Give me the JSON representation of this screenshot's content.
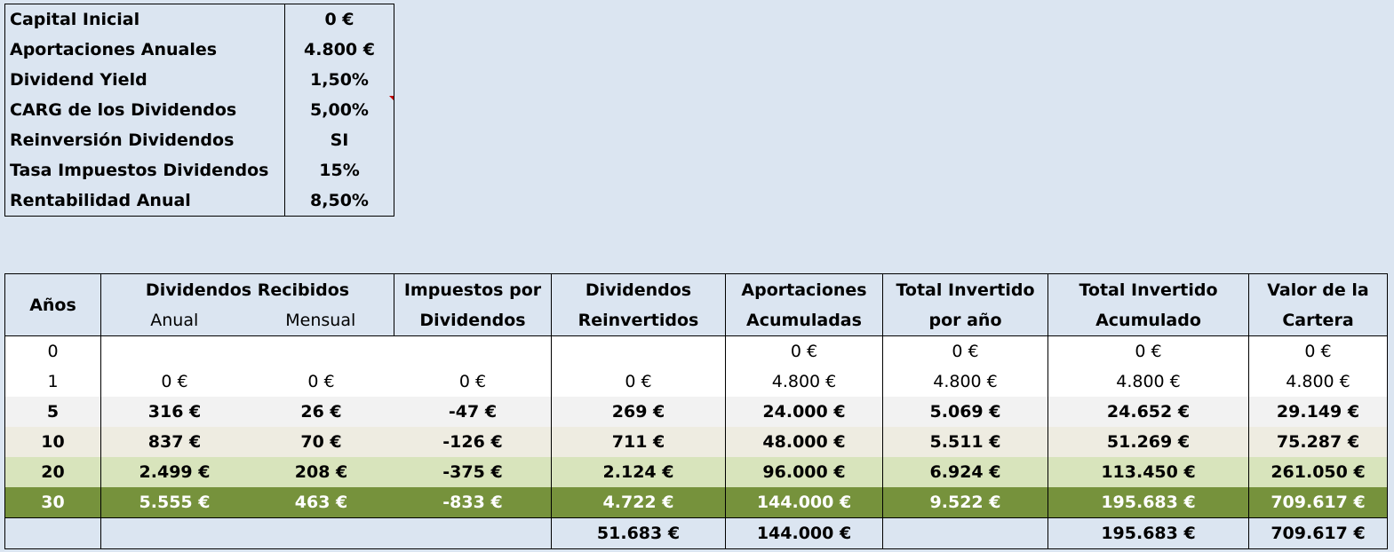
{
  "parameters": [
    {
      "label": "Capital Inicial",
      "value": "0 €"
    },
    {
      "label": "Aportaciones Anuales",
      "value": "4.800 €"
    },
    {
      "label": "Dividend Yield",
      "value": "1,50%"
    },
    {
      "label": "CARG de los Dividendos",
      "value": "5,00%"
    },
    {
      "label": "Reinversión Dividendos",
      "value": "SI"
    },
    {
      "label": "Tasa Impuestos Dividendos",
      "value": "15%"
    },
    {
      "label": "Rentabilidad Anual",
      "value": "8,50%"
    }
  ],
  "table": {
    "headers": {
      "years": "Años",
      "dividends": "Dividendos Recibidos",
      "annual": "Anual",
      "monthly": "Mensual",
      "taxes_1": "Impuestos por",
      "taxes_2": "Dividendos",
      "reinvested_1": "Dividendos",
      "reinvested_2": "Reinvertidos",
      "contrib_1": "Aportaciones",
      "contrib_2": "Acumuladas",
      "invested_year_1": "Total Invertido",
      "invested_year_2": "por año",
      "invested_acc_1": "Total Invertido",
      "invested_acc_2": "Acumulado",
      "portfolio_1": "Valor de la",
      "portfolio_2": "Cartera"
    },
    "rows": [
      {
        "year": "0",
        "annual": "",
        "monthly": "",
        "taxes": "",
        "reinvested": "",
        "contrib": "0 €",
        "invested_year": "0 €",
        "invested_acc": "0 €",
        "portfolio": "0 €"
      },
      {
        "year": "1",
        "annual": "0 €",
        "monthly": "0 €",
        "taxes": "0 €",
        "reinvested": "0 €",
        "contrib": "4.800 €",
        "invested_year": "4.800 €",
        "invested_acc": "4.800 €",
        "portfolio": "4.800 €"
      },
      {
        "year": "5",
        "annual": "316 €",
        "monthly": "26 €",
        "taxes": "-47 €",
        "reinvested": "269 €",
        "contrib": "24.000 €",
        "invested_year": "5.069 €",
        "invested_acc": "24.652 €",
        "portfolio": "29.149 €"
      },
      {
        "year": "10",
        "annual": "837 €",
        "monthly": "70 €",
        "taxes": "-126 €",
        "reinvested": "711 €",
        "contrib": "48.000 €",
        "invested_year": "5.511 €",
        "invested_acc": "51.269 €",
        "portfolio": "75.287 €"
      },
      {
        "year": "20",
        "annual": "2.499 €",
        "monthly": "208 €",
        "taxes": "-375 €",
        "reinvested": "2.124 €",
        "contrib": "96.000 €",
        "invested_year": "6.924 €",
        "invested_acc": "113.450 €",
        "portfolio": "261.050 €"
      },
      {
        "year": "30",
        "annual": "5.555 €",
        "monthly": "463 €",
        "taxes": "-833 €",
        "reinvested": "4.722 €",
        "contrib": "144.000 €",
        "invested_year": "9.522 €",
        "invested_acc": "195.683 €",
        "portfolio": "709.617 €"
      }
    ],
    "totals": {
      "reinvested": "51.683 €",
      "contrib": "144.000 €",
      "invested_acc": "195.683 €",
      "portfolio": "709.617 €"
    }
  },
  "colors": {
    "background": "#dbe5f1",
    "row_lightgray": "#f2f2f2",
    "row_beige": "#eeece1",
    "row_lightgreen": "#d8e4bc",
    "row_green": "#76923c",
    "comment_marker": "#c00000"
  }
}
